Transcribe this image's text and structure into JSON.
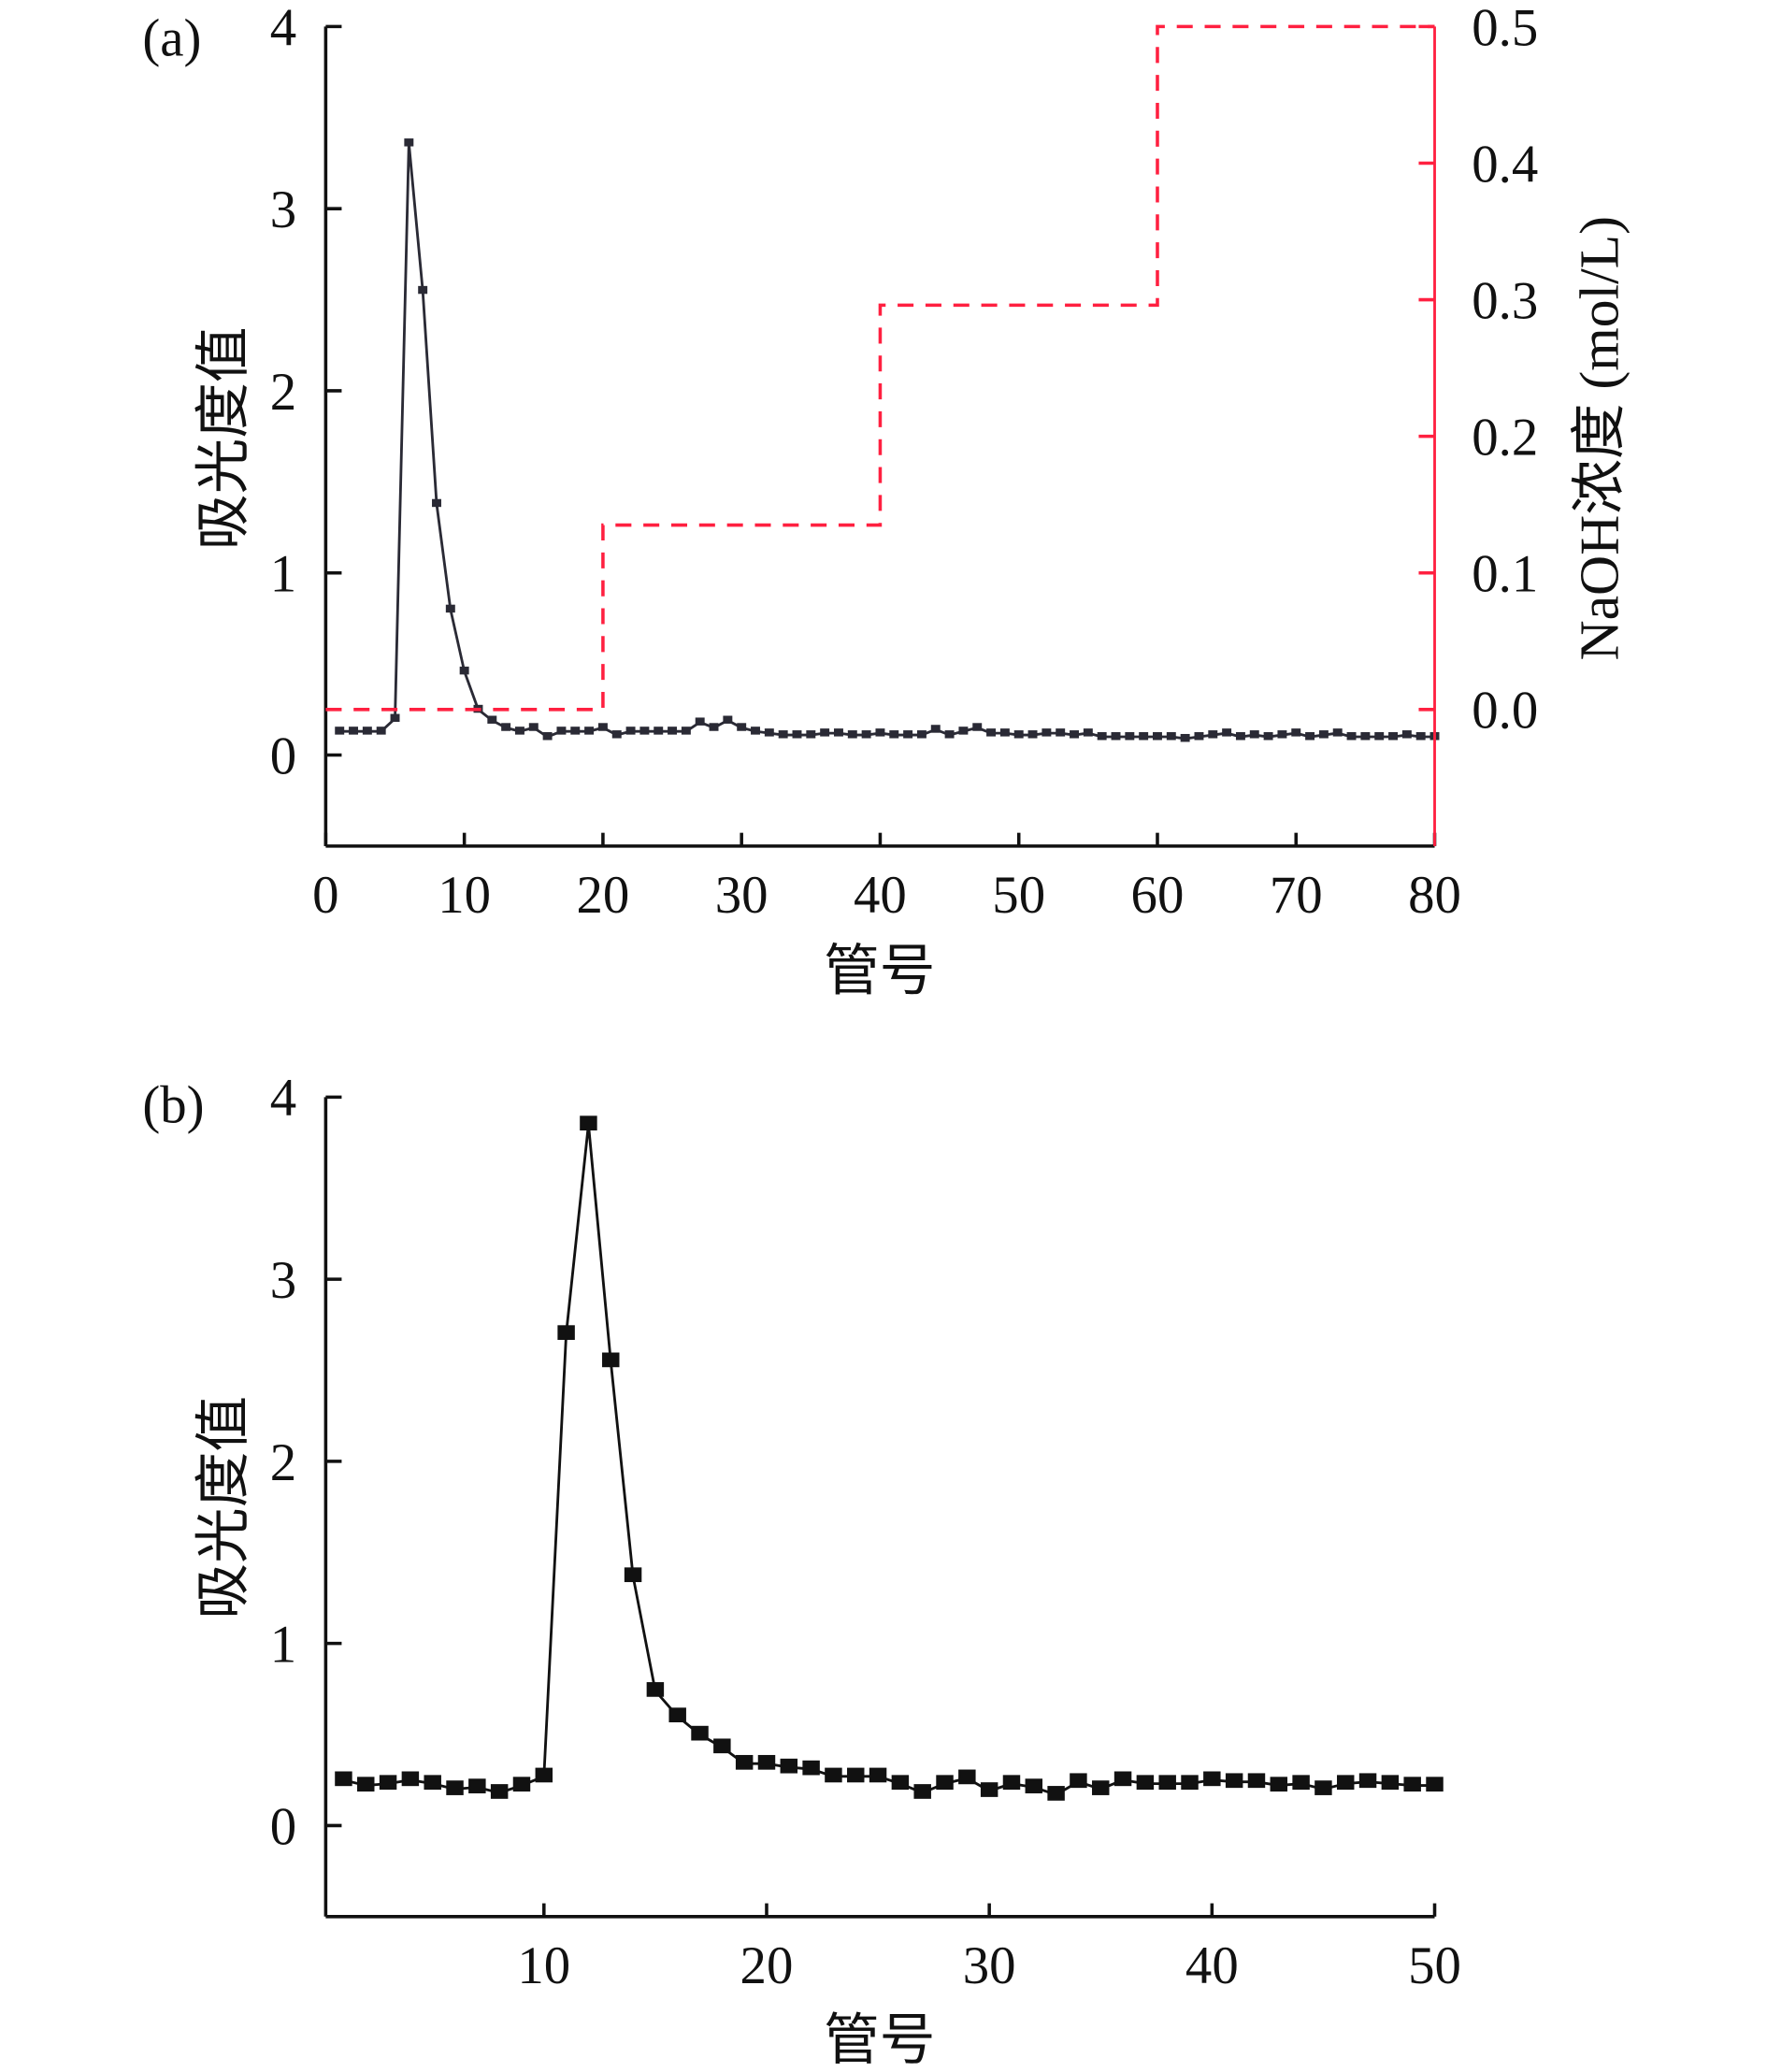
{
  "chart_data": [
    {
      "type": "line",
      "panel_label": "(a)",
      "xlabel": "管号",
      "ylabel": "吸光度值",
      "y2label": "NaOH浓度 (mol/L)",
      "xlim": [
        0,
        80
      ],
      "ylim": [
        -0.5,
        4
      ],
      "y2lim": [
        -0.1,
        0.5
      ],
      "xticks": [
        "0",
        "10",
        "20",
        "30",
        "40",
        "50",
        "60",
        "70",
        "80"
      ],
      "yticks": [
        "0",
        "1",
        "2",
        "3",
        "4"
      ],
      "y2ticks": [
        "0.0",
        "0.1",
        "0.2",
        "0.3",
        "0.4",
        "0.5"
      ],
      "colors": {
        "absorbance": "#2a2a35",
        "naoh": "#ff2040"
      },
      "series": [
        {
          "name": "吸光度值",
          "x": [
            1,
            2,
            3,
            4,
            5,
            6,
            7,
            8,
            9,
            10,
            11,
            12,
            13,
            14,
            15,
            16,
            17,
            18,
            19,
            20,
            21,
            22,
            23,
            24,
            25,
            26,
            27,
            28,
            29,
            30,
            31,
            32,
            33,
            34,
            35,
            36,
            37,
            38,
            39,
            40,
            41,
            42,
            43,
            44,
            45,
            46,
            47,
            48,
            49,
            50,
            51,
            52,
            53,
            54,
            55,
            56,
            57,
            58,
            59,
            60,
            61,
            62,
            63,
            64,
            65,
            66,
            67,
            68,
            69,
            70,
            71,
            72,
            73,
            74,
            75,
            76,
            77,
            78,
            79,
            80
          ],
          "values": [
            0.13,
            0.13,
            0.13,
            0.13,
            0.2,
            3.36,
            2.55,
            1.38,
            0.8,
            0.46,
            0.25,
            0.19,
            0.15,
            0.13,
            0.15,
            0.1,
            0.13,
            0.13,
            0.13,
            0.15,
            0.11,
            0.13,
            0.13,
            0.13,
            0.13,
            0.13,
            0.18,
            0.15,
            0.19,
            0.15,
            0.13,
            0.12,
            0.11,
            0.11,
            0.11,
            0.12,
            0.12,
            0.11,
            0.11,
            0.12,
            0.11,
            0.11,
            0.11,
            0.14,
            0.11,
            0.13,
            0.15,
            0.12,
            0.12,
            0.11,
            0.11,
            0.12,
            0.12,
            0.11,
            0.12,
            0.1,
            0.1,
            0.1,
            0.1,
            0.1,
            0.1,
            0.09,
            0.1,
            0.11,
            0.12,
            0.1,
            0.11,
            0.1,
            0.11,
            0.12,
            0.1,
            0.11,
            0.12,
            0.1,
            0.1,
            0.1,
            0.1,
            0.11,
            0.1,
            0.1
          ]
        },
        {
          "name": "NaOH浓度",
          "axis": "right",
          "style": "dashed-step",
          "x": [
            0,
            20,
            20,
            40,
            40,
            60,
            60,
            80
          ],
          "values": [
            0.0,
            0.0,
            0.135,
            0.135,
            0.296,
            0.296,
            0.5,
            0.5
          ]
        }
      ]
    },
    {
      "type": "line",
      "panel_label": "(b)",
      "xlabel": "管号",
      "ylabel": "吸光度值",
      "xlim": [
        0.2,
        50
      ],
      "ylim": [
        -0.5,
        4
      ],
      "xticks": [
        "10",
        "20",
        "30",
        "40",
        "50"
      ],
      "yticks": [
        "0",
        "1",
        "2",
        "3",
        "4"
      ],
      "colors": {
        "absorbance": "#111111"
      },
      "series": [
        {
          "name": "吸光度值",
          "x": [
            1,
            2,
            3,
            4,
            5,
            6,
            7,
            8,
            9,
            10,
            11,
            12,
            13,
            14,
            15,
            16,
            17,
            18,
            19,
            20,
            21,
            22,
            23,
            24,
            25,
            26,
            27,
            28,
            29,
            30,
            31,
            32,
            33,
            34,
            35,
            36,
            37,
            38,
            39,
            40,
            41,
            42,
            43,
            44,
            45,
            46,
            47,
            48,
            49,
            50
          ],
          "values": [
            0.25,
            0.22,
            0.23,
            0.25,
            0.23,
            0.2,
            0.21,
            0.18,
            0.22,
            0.27,
            2.7,
            3.85,
            2.55,
            1.37,
            0.74,
            0.6,
            0.5,
            0.43,
            0.34,
            0.34,
            0.32,
            0.31,
            0.27,
            0.27,
            0.27,
            0.23,
            0.18,
            0.23,
            0.26,
            0.19,
            0.23,
            0.21,
            0.17,
            0.24,
            0.2,
            0.25,
            0.23,
            0.23,
            0.23,
            0.25,
            0.24,
            0.24,
            0.22,
            0.23,
            0.2,
            0.23,
            0.24,
            0.23,
            0.22,
            0.22
          ]
        }
      ]
    }
  ]
}
